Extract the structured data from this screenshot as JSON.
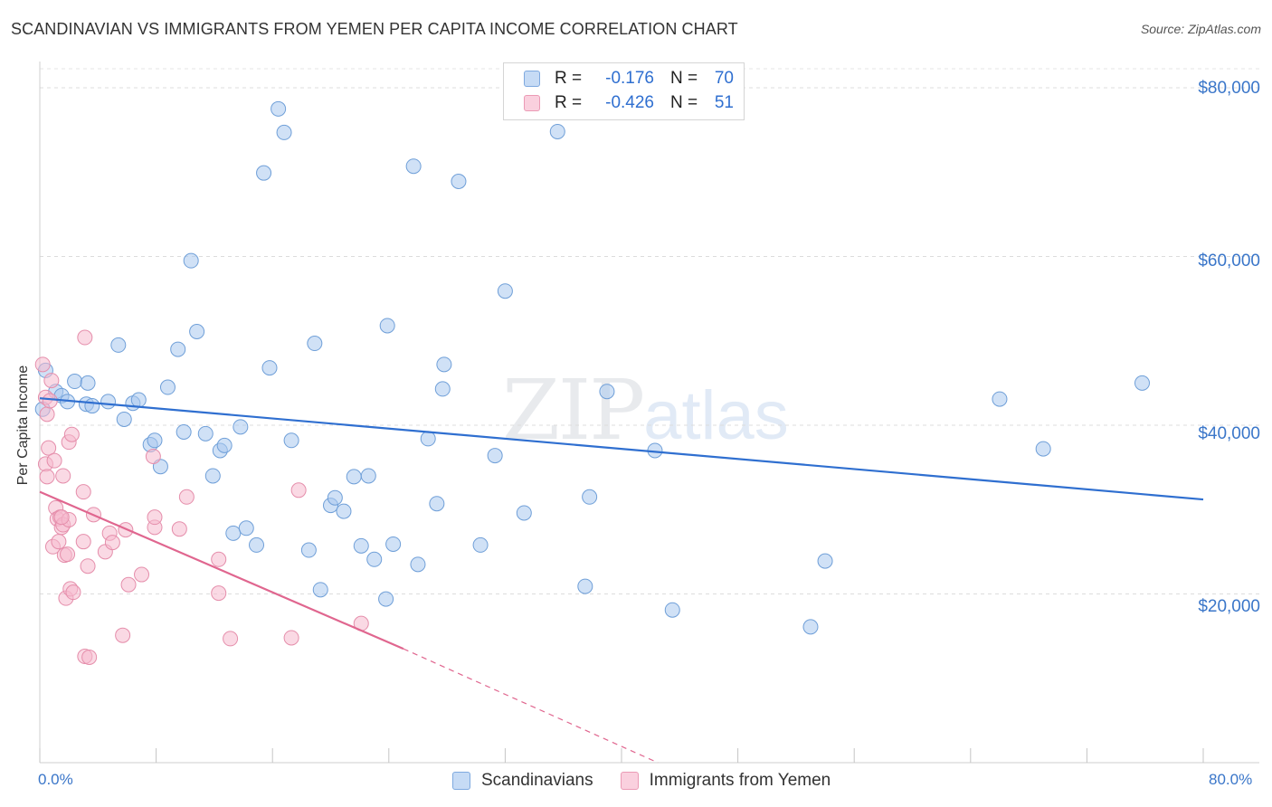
{
  "header": {
    "title": "SCANDINAVIAN VS IMMIGRANTS FROM YEMEN PER CAPITA INCOME CORRELATION CHART",
    "source": "Source: ZipAtlas.com"
  },
  "watermark": {
    "zip": "ZIP",
    "atlas": "atlas"
  },
  "legend_top": {
    "rows": [
      {
        "r_label": "R =",
        "r_value": "-0.176",
        "n_label": "N =",
        "n_value": "70",
        "color": "#a9c8ef"
      },
      {
        "r_label": "R =",
        "r_value": "-0.426",
        "n_label": "N =",
        "n_value": "51",
        "color": "#f6b9cd"
      }
    ]
  },
  "legend_bottom": {
    "items": [
      {
        "label": "Scandinavians",
        "color": "#a9c8ef"
      },
      {
        "label": "Immigrants from Yemen",
        "color": "#f6b9cd"
      }
    ]
  },
  "chart_data": {
    "type": "scatter",
    "title": "SCANDINAVIAN VS IMMIGRANTS FROM YEMEN PER CAPITA INCOME CORRELATION CHART",
    "xlabel": "",
    "ylabel": "Per Capita Income",
    "xlim": [
      0,
      80
    ],
    "ylim": [
      0,
      83000
    ],
    "x_tick_labels": {
      "min": "0.0%",
      "max": "80.0%"
    },
    "y_ticks": [
      {
        "value": 20000,
        "label": "$20,000"
      },
      {
        "value": 40000,
        "label": "$40,000"
      },
      {
        "value": 60000,
        "label": "$60,000"
      },
      {
        "value": 80000,
        "label": "$80,000"
      }
    ],
    "grid": "horizontal dashed",
    "series": [
      {
        "name": "Scandinavians",
        "color": "#a9c8ef",
        "stroke": "#6f9fd8",
        "trend": {
          "x0": 0,
          "y0": 43200,
          "x1": 80,
          "y1": 31200,
          "color": "#2f6fd0"
        },
        "points": [
          [
            0.4,
            46500
          ],
          [
            1.1,
            44000
          ],
          [
            1.5,
            43500
          ],
          [
            2.4,
            45200
          ],
          [
            1.9,
            42800
          ],
          [
            3.3,
            45000
          ],
          [
            3.2,
            42500
          ],
          [
            3.6,
            42300
          ],
          [
            4.7,
            42800
          ],
          [
            5.4,
            49500
          ],
          [
            5.8,
            40700
          ],
          [
            6.4,
            42600
          ],
          [
            6.8,
            43000
          ],
          [
            7.6,
            37700
          ],
          [
            7.9,
            38200
          ],
          [
            8.3,
            35100
          ],
          [
            8.8,
            44500
          ],
          [
            9.5,
            49000
          ],
          [
            9.9,
            39200
          ],
          [
            10.4,
            59500
          ],
          [
            10.8,
            51100
          ],
          [
            11.4,
            39000
          ],
          [
            11.9,
            34000
          ],
          [
            12.4,
            37000
          ],
          [
            12.7,
            37600
          ],
          [
            13.3,
            27200
          ],
          [
            13.8,
            39800
          ],
          [
            14.2,
            27800
          ],
          [
            14.9,
            25800
          ],
          [
            15.4,
            69900
          ],
          [
            15.8,
            46800
          ],
          [
            16.4,
            77500
          ],
          [
            16.8,
            74700
          ],
          [
            17.3,
            38200
          ],
          [
            18.5,
            25200
          ],
          [
            18.9,
            49700
          ],
          [
            19.3,
            20500
          ],
          [
            20.0,
            30500
          ],
          [
            20.3,
            31400
          ],
          [
            20.9,
            29800
          ],
          [
            21.6,
            33900
          ],
          [
            22.1,
            25700
          ],
          [
            22.6,
            34000
          ],
          [
            23.0,
            24100
          ],
          [
            23.8,
            19400
          ],
          [
            23.9,
            51800
          ],
          [
            24.3,
            25900
          ],
          [
            25.7,
            70700
          ],
          [
            26.0,
            23500
          ],
          [
            26.7,
            38400
          ],
          [
            27.3,
            30700
          ],
          [
            27.7,
            44300
          ],
          [
            27.8,
            47200
          ],
          [
            28.8,
            68900
          ],
          [
            30.3,
            25800
          ],
          [
            31.3,
            36400
          ],
          [
            32.0,
            55900
          ],
          [
            33.3,
            29600
          ],
          [
            35.6,
            74800
          ],
          [
            37.5,
            20900
          ],
          [
            37.8,
            31500
          ],
          [
            39.0,
            44000
          ],
          [
            42.3,
            37000
          ],
          [
            43.5,
            18100
          ],
          [
            53.0,
            16100
          ],
          [
            54.0,
            23900
          ],
          [
            66.0,
            43100
          ],
          [
            69.0,
            37200
          ],
          [
            75.8,
            45000
          ],
          [
            0.2,
            41900
          ]
        ]
      },
      {
        "name": "Immigrants from Yemen",
        "color": "#f6b9cd",
        "stroke": "#e58eab",
        "trend": {
          "x0": 0,
          "y0": 32100,
          "x1": 25,
          "y1": 13500,
          "color": "#e0668f",
          "dash_to": {
            "x": 42.5,
            "y": 0
          }
        },
        "points": [
          [
            0.2,
            47200
          ],
          [
            0.4,
            43300
          ],
          [
            0.5,
            41300
          ],
          [
            0.6,
            37300
          ],
          [
            0.4,
            35400
          ],
          [
            0.5,
            33900
          ],
          [
            0.8,
            45300
          ],
          [
            0.9,
            25600
          ],
          [
            1.0,
            35800
          ],
          [
            1.1,
            30200
          ],
          [
            1.2,
            28900
          ],
          [
            1.3,
            26200
          ],
          [
            1.4,
            29100
          ],
          [
            1.5,
            27900
          ],
          [
            1.6,
            28200
          ],
          [
            1.6,
            34000
          ],
          [
            1.7,
            24600
          ],
          [
            1.8,
            19500
          ],
          [
            1.9,
            24700
          ],
          [
            2.0,
            28800
          ],
          [
            2.0,
            38000
          ],
          [
            2.1,
            20600
          ],
          [
            2.2,
            38900
          ],
          [
            2.3,
            20200
          ],
          [
            3.1,
            50400
          ],
          [
            3.0,
            32100
          ],
          [
            3.0,
            26200
          ],
          [
            3.1,
            12600
          ],
          [
            3.3,
            23300
          ],
          [
            3.4,
            12500
          ],
          [
            3.7,
            29400
          ],
          [
            4.5,
            25000
          ],
          [
            4.8,
            27200
          ],
          [
            5.0,
            26100
          ],
          [
            5.7,
            15100
          ],
          [
            5.9,
            27600
          ],
          [
            6.1,
            21100
          ],
          [
            7.0,
            22300
          ],
          [
            7.8,
            36300
          ],
          [
            7.9,
            27900
          ],
          [
            7.9,
            29100
          ],
          [
            9.6,
            27700
          ],
          [
            10.1,
            31500
          ],
          [
            12.3,
            24100
          ],
          [
            12.3,
            20100
          ],
          [
            13.1,
            14700
          ],
          [
            17.3,
            14800
          ],
          [
            17.8,
            32300
          ],
          [
            22.1,
            16500
          ],
          [
            0.7,
            42900
          ],
          [
            1.5,
            29100
          ]
        ]
      }
    ]
  }
}
